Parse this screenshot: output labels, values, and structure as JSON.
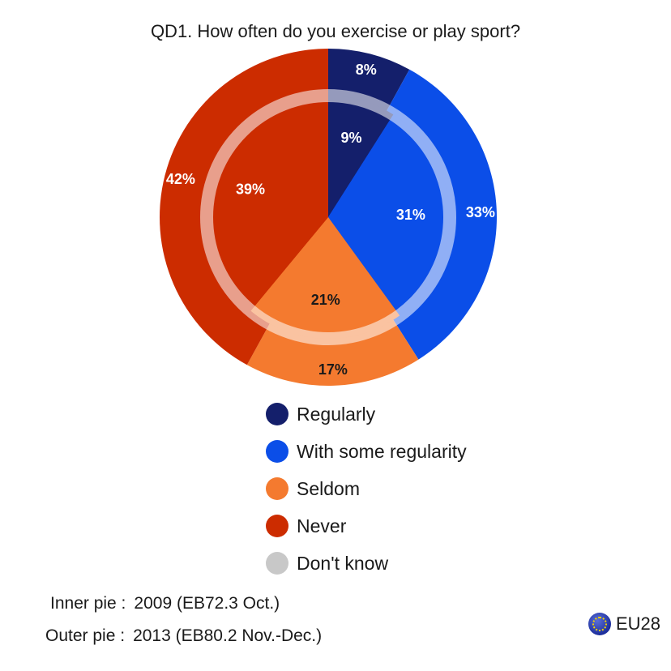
{
  "chart_data": {
    "type": "pie",
    "title": "QD1. How often do you exercise or play sport?",
    "categories": [
      "Regularly",
      "With some regularity",
      "Seldom",
      "Never",
      "Don't know"
    ],
    "colors": [
      "#141f6b",
      "#0b4ee8",
      "#f47a2f",
      "#cc2c00",
      "#c8c8c8"
    ],
    "series": [
      {
        "name": "Outer pie",
        "values": [
          8,
          33,
          17,
          42,
          0
        ],
        "labels": [
          "8%",
          "33%",
          "17%",
          "42%",
          ""
        ]
      },
      {
        "name": "Inner pie",
        "values": [
          9,
          31,
          21,
          39,
          0
        ],
        "labels": [
          "9%",
          "31%",
          "21%",
          "39%",
          ""
        ]
      }
    ],
    "legend": "bottom"
  },
  "notes": {
    "inner_label": "Inner pie :",
    "inner_value": "2009 (EB72.3 Oct.)",
    "outer_label": "Outer pie :",
    "outer_value": "2013 (EB80.2 Nov.-Dec.)"
  },
  "badge": {
    "label": "EU28",
    "icon": "eu-flag-icon"
  }
}
